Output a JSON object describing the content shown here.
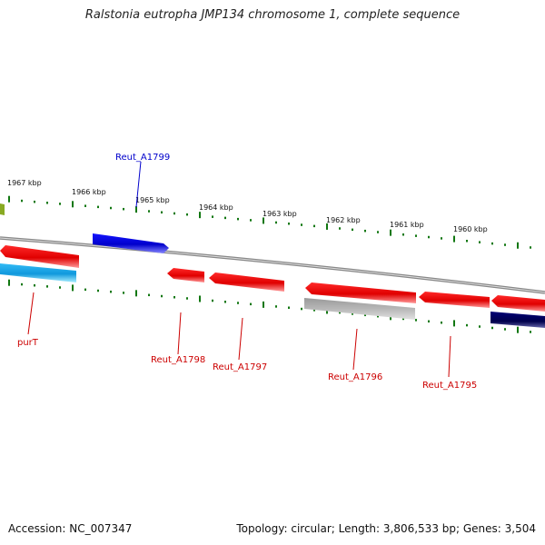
{
  "title": "Ralstonia eutropha JMP134 chromosome 1, complete sequence",
  "footer": {
    "accession": "Accession: NC_007347",
    "summary": "Topology: circular; Length: 3,806,533 bp; Genes: 3,504"
  },
  "colors": {
    "forward_gene": "#0000dd",
    "reverse_gene": "#ee0000",
    "cyan_gene": "#22aaee",
    "grey_gene": "#aaaaaa",
    "navy_gene": "#000066",
    "olive_gene": "#88aa22",
    "tick": "#117711",
    "backbone": "#888888",
    "forward_label": "#0000cc",
    "reverse_label": "#cc0000"
  },
  "scale_labels": [
    "1967 kbp",
    "1966 kbp",
    "1965 kbp",
    "1964 kbp",
    "1963 kbp",
    "1962 kbp",
    "1961 kbp",
    "1960 kbp"
  ],
  "gene_labels": [
    {
      "text": "Reut_A1799",
      "strand": "forward"
    },
    {
      "text": "purT",
      "strand": "reverse"
    },
    {
      "text": "Reut_A1798",
      "strand": "reverse"
    },
    {
      "text": "Reut_A1797",
      "strand": "reverse"
    },
    {
      "text": "Reut_A1796",
      "strand": "reverse"
    },
    {
      "text": "Reut_A1795",
      "strand": "reverse"
    }
  ]
}
